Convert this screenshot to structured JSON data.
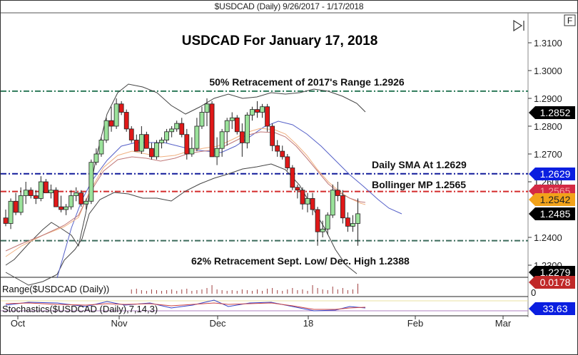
{
  "window": {
    "title": "$USDCAD (Daily)  9/26/2017 - 1/17/2018",
    "full_button": "F",
    "jump_end_icon": "skip-to-end-icon"
  },
  "chart_data": {
    "type": "candlestick",
    "title": "USDCAD For January 17, 2018",
    "symbol": "$USDCAD (Daily)",
    "date_range": "9/26/2017 - 1/17/2018",
    "xlabel": "",
    "ylabel": "",
    "x_ticks": [
      "Oct",
      "Nov",
      "Dec",
      "18",
      "Feb",
      "Mar"
    ],
    "y_ticks": [
      "1.3100",
      "1.3000",
      "1.2900",
      "1.2800",
      "1.2700",
      "1.2600",
      "1.2400",
      "1.2300"
    ],
    "ylim": [
      1.2255,
      1.3215
    ],
    "grid": false,
    "price_tags": [
      {
        "value": "1.2852",
        "color": "#000000",
        "meaning": "upper Bollinger band"
      },
      {
        "value": "1.2629",
        "color": "#0a1ee0",
        "meaning": "daily SMA"
      },
      {
        "value": "1.2565",
        "color": "#d42a2a",
        "meaning": "Bollinger midpoint"
      },
      {
        "value": "1.2542",
        "color": "#f2a21a",
        "meaning": "EMA"
      },
      {
        "value": "1.2485",
        "color": "#000000",
        "meaning": "last close"
      },
      {
        "value": "1.2279",
        "color": "#000000",
        "meaning": "lower Bollinger band"
      }
    ],
    "horizontal_lines": [
      {
        "label": "50% Retracement of 2017's Range 1.2926",
        "value": 1.2926,
        "color": "#2e7a5a",
        "style": "dash-dot"
      },
      {
        "label": "Daily SMA At 1.2629",
        "value": 1.2629,
        "color": "#101a9a",
        "style": "dash-dot"
      },
      {
        "label": "Bollinger MP 1.2565",
        "value": 1.2565,
        "color": "#d42a2a",
        "style": "dash-dot"
      },
      {
        "label": "62% Retracement Sept. Low/ Dec. High 1.2388",
        "value": 1.2388,
        "color": "#3a6a5a",
        "style": "dash-dot"
      }
    ],
    "candles_ohlc": [
      [
        1.247,
        1.25,
        1.244,
        1.245
      ],
      [
        1.245,
        1.254,
        1.243,
        1.253
      ],
      [
        1.253,
        1.256,
        1.248,
        1.249
      ],
      [
        1.249,
        1.258,
        1.248,
        1.255
      ],
      [
        1.255,
        1.26,
        1.252,
        1.257
      ],
      [
        1.257,
        1.258,
        1.254,
        1.255
      ],
      [
        1.255,
        1.257,
        1.252,
        1.254
      ],
      [
        1.254,
        1.262,
        1.253,
        1.26
      ],
      [
        1.26,
        1.261,
        1.257,
        1.256
      ],
      [
        1.256,
        1.259,
        1.254,
        1.257
      ],
      [
        1.257,
        1.258,
        1.253,
        1.251
      ],
      [
        1.251,
        1.255,
        1.249,
        1.25
      ],
      [
        1.25,
        1.252,
        1.248,
        1.251
      ],
      [
        1.251,
        1.257,
        1.25,
        1.255
      ],
      [
        1.255,
        1.258,
        1.253,
        1.256
      ],
      [
        1.256,
        1.257,
        1.251,
        1.252
      ],
      [
        1.252,
        1.254,
        1.25,
        1.253
      ],
      [
        1.253,
        1.268,
        1.252,
        1.267
      ],
      [
        1.267,
        1.272,
        1.266,
        1.27
      ],
      [
        1.27,
        1.276,
        1.269,
        1.275
      ],
      [
        1.275,
        1.283,
        1.274,
        1.282
      ],
      [
        1.282,
        1.287,
        1.278,
        1.28
      ],
      [
        1.28,
        1.29,
        1.279,
        1.288
      ],
      [
        1.288,
        1.289,
        1.284,
        1.285
      ],
      [
        1.285,
        1.286,
        1.278,
        1.279
      ],
      [
        1.279,
        1.28,
        1.274,
        1.275
      ],
      [
        1.275,
        1.277,
        1.272,
        1.271
      ],
      [
        1.271,
        1.28,
        1.27,
        1.277
      ],
      [
        1.277,
        1.278,
        1.273,
        1.272
      ],
      [
        1.272,
        1.274,
        1.268,
        1.269
      ],
      [
        1.269,
        1.275,
        1.268,
        1.274
      ],
      [
        1.274,
        1.276,
        1.272,
        1.275
      ],
      [
        1.275,
        1.279,
        1.274,
        1.278
      ],
      [
        1.278,
        1.28,
        1.276,
        1.279
      ],
      [
        1.279,
        1.282,
        1.278,
        1.281
      ],
      [
        1.281,
        1.283,
        1.276,
        1.277
      ],
      [
        1.277,
        1.279,
        1.268,
        1.27
      ],
      [
        1.27,
        1.276,
        1.269,
        1.272
      ],
      [
        1.272,
        1.283,
        1.271,
        1.28
      ],
      [
        1.28,
        1.287,
        1.279,
        1.285
      ],
      [
        1.285,
        1.29,
        1.28,
        1.288
      ],
      [
        1.288,
        1.289,
        1.269,
        1.269
      ],
      [
        1.269,
        1.276,
        1.266,
        1.272
      ],
      [
        1.272,
        1.279,
        1.269,
        1.278
      ],
      [
        1.278,
        1.283,
        1.273,
        1.282
      ],
      [
        1.282,
        1.285,
        1.279,
        1.283
      ],
      [
        1.283,
        1.284,
        1.277,
        1.278
      ],
      [
        1.278,
        1.281,
        1.269,
        1.274
      ],
      [
        1.274,
        1.285,
        1.272,
        1.284
      ],
      [
        1.284,
        1.287,
        1.282,
        1.286
      ],
      [
        1.286,
        1.289,
        1.283,
        1.285
      ],
      [
        1.285,
        1.288,
        1.283,
        1.287
      ],
      [
        1.287,
        1.288,
        1.278,
        1.28
      ],
      [
        1.28,
        1.281,
        1.271,
        1.273
      ],
      [
        1.273,
        1.275,
        1.269,
        1.271
      ],
      [
        1.271,
        1.273,
        1.268,
        1.269
      ],
      [
        1.269,
        1.27,
        1.264,
        1.265
      ],
      [
        1.265,
        1.266,
        1.257,
        1.258
      ],
      [
        1.258,
        1.259,
        1.254,
        1.257
      ],
      [
        1.257,
        1.258,
        1.25,
        1.252
      ],
      [
        1.252,
        1.256,
        1.249,
        1.254
      ],
      [
        1.254,
        1.256,
        1.248,
        1.25
      ],
      [
        1.25,
        1.251,
        1.237,
        1.242
      ],
      [
        1.242,
        1.246,
        1.24,
        1.243
      ],
      [
        1.243,
        1.249,
        1.241,
        1.248
      ],
      [
        1.248,
        1.259,
        1.247,
        1.257
      ],
      [
        1.257,
        1.26,
        1.253,
        1.255
      ],
      [
        1.255,
        1.257,
        1.245,
        1.247
      ],
      [
        1.247,
        1.249,
        1.242,
        1.244
      ],
      [
        1.244,
        1.248,
        1.242,
        1.245
      ],
      [
        1.245,
        1.254,
        1.237,
        1.2485
      ]
    ],
    "indicators": [
      {
        "name": "Bollinger Bands (upper/lower)",
        "color": "#333333"
      },
      {
        "name": "SMA",
        "color": "#4b55c8"
      },
      {
        "name": "EMA",
        "color": "#e8a060"
      },
      {
        "name": "Bollinger MP",
        "color": "#c07070"
      }
    ],
    "subpanels": [
      {
        "name": "Range($USDCAD (Daily))",
        "last_value": "0.0178",
        "tag_color": "#c02828",
        "y_ticks": [
          "0"
        ],
        "type": "bar"
      },
      {
        "name": "Stochastics($USDCAD (Daily),7,14,3)",
        "last_value": "33.63",
        "tag_color": "#0a1ee0",
        "type": "line"
      }
    ]
  },
  "annotations": {
    "headline": "USDCAD For January 17, 2018",
    "fib50": "50% Retracement of 2017's Range 1.2926",
    "sma": "Daily SMA At 1.2629",
    "boll": "Bollinger MP 1.2565",
    "fib62": "62% Retracement Sept. Low/ Dec. High 1.2388"
  },
  "axis": {
    "y": [
      "1.3100",
      "1.3000",
      "1.2900",
      "1.2800",
      "1.2700",
      "1.2600",
      "1.2400",
      "1.2300"
    ],
    "x": [
      "Oct",
      "Nov",
      "Dec",
      "18",
      "Feb",
      "Mar"
    ]
  },
  "tags": {
    "upper": "1.2852",
    "sma": "1.2629",
    "mp_hidden": "1.2565",
    "ema": "1.2542",
    "last": "1.2485",
    "lower": "1.2279",
    "range": "0.0178",
    "stoch": "33.63"
  },
  "panels": {
    "range_label": "Range($USDCAD (Daily))",
    "range_zero": "0",
    "stoch_label": "Stochastics($USDCAD (Daily),7,14,3)"
  }
}
